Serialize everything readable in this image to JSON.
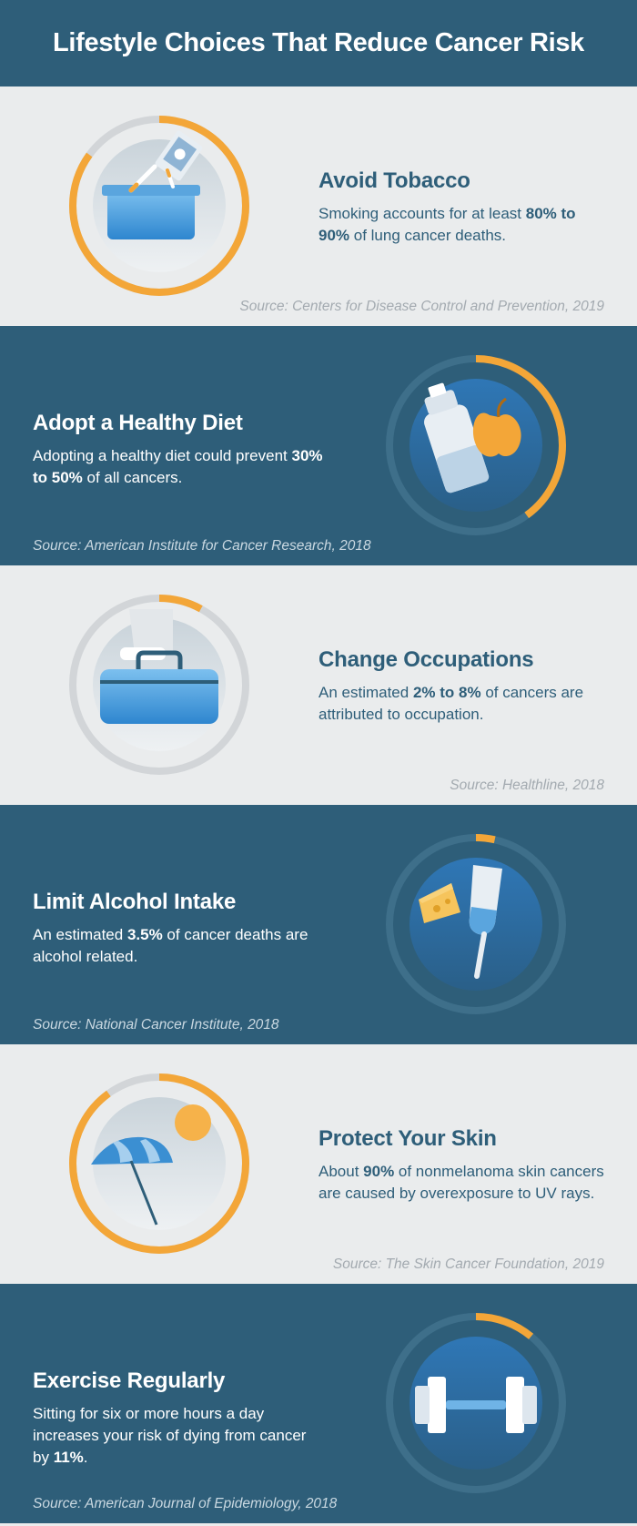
{
  "title": "Lifestyle Choices That Reduce Cancer Risk",
  "colors": {
    "accent": "#f3a638",
    "dark_bg": "#2e5e79",
    "light_bg": "#eaeced",
    "icon_blue": "#3b8fd2"
  },
  "sections": [
    {
      "heading": "Avoid Tobacco",
      "text_before": "Smoking accounts for at least ",
      "bold": "80% to 90%",
      "text_after": " of lung cancer deaths.",
      "source": "Source: Centers for Disease Control and Prevention, 2019",
      "icon": "cigarette-ashtray-icon",
      "ring_fraction": 0.85
    },
    {
      "heading": "Adopt a Healthy Diet",
      "text_before": "Adopting a healthy diet could prevent ",
      "bold": "30% to 50%",
      "text_after": " of all cancers.",
      "source": "Source: American Institute for Cancer Research, 2018",
      "icon": "bottle-apple-icon",
      "ring_fraction": 0.4
    },
    {
      "heading": "Change Occupations",
      "text_before": "An estimated ",
      "bold": "2% to 8%",
      "text_after": " of cancers are attributed to occupation.",
      "source": "Source: Healthline, 2018",
      "icon": "briefcase-icon",
      "ring_fraction": 0.08
    },
    {
      "heading": "Limit Alcohol Intake",
      "text_before": "An estimated ",
      "bold": "3.5%",
      "text_after": " of cancer deaths are alcohol related.",
      "source": "Source: National Cancer Institute, 2018",
      "icon": "wine-glass-cheese-icon",
      "ring_fraction": 0.035
    },
    {
      "heading": "Protect Your Skin",
      "text_before": "About ",
      "bold": "90%",
      "text_after": " of nonmelanoma skin cancers are caused by overexposure to UV rays.",
      "source": "Source: The Skin Cancer Foundation, 2019",
      "icon": "beach-umbrella-sun-icon",
      "ring_fraction": 0.9
    },
    {
      "heading": "Exercise Regularly",
      "text_before": "Sitting for six or more hours a day increases your risk of dying from cancer by ",
      "bold": "11%",
      "text_after": ".",
      "source": "Source: American Journal of Epidemiology, 2018",
      "icon": "dumbbell-icon",
      "ring_fraction": 0.11
    }
  ]
}
